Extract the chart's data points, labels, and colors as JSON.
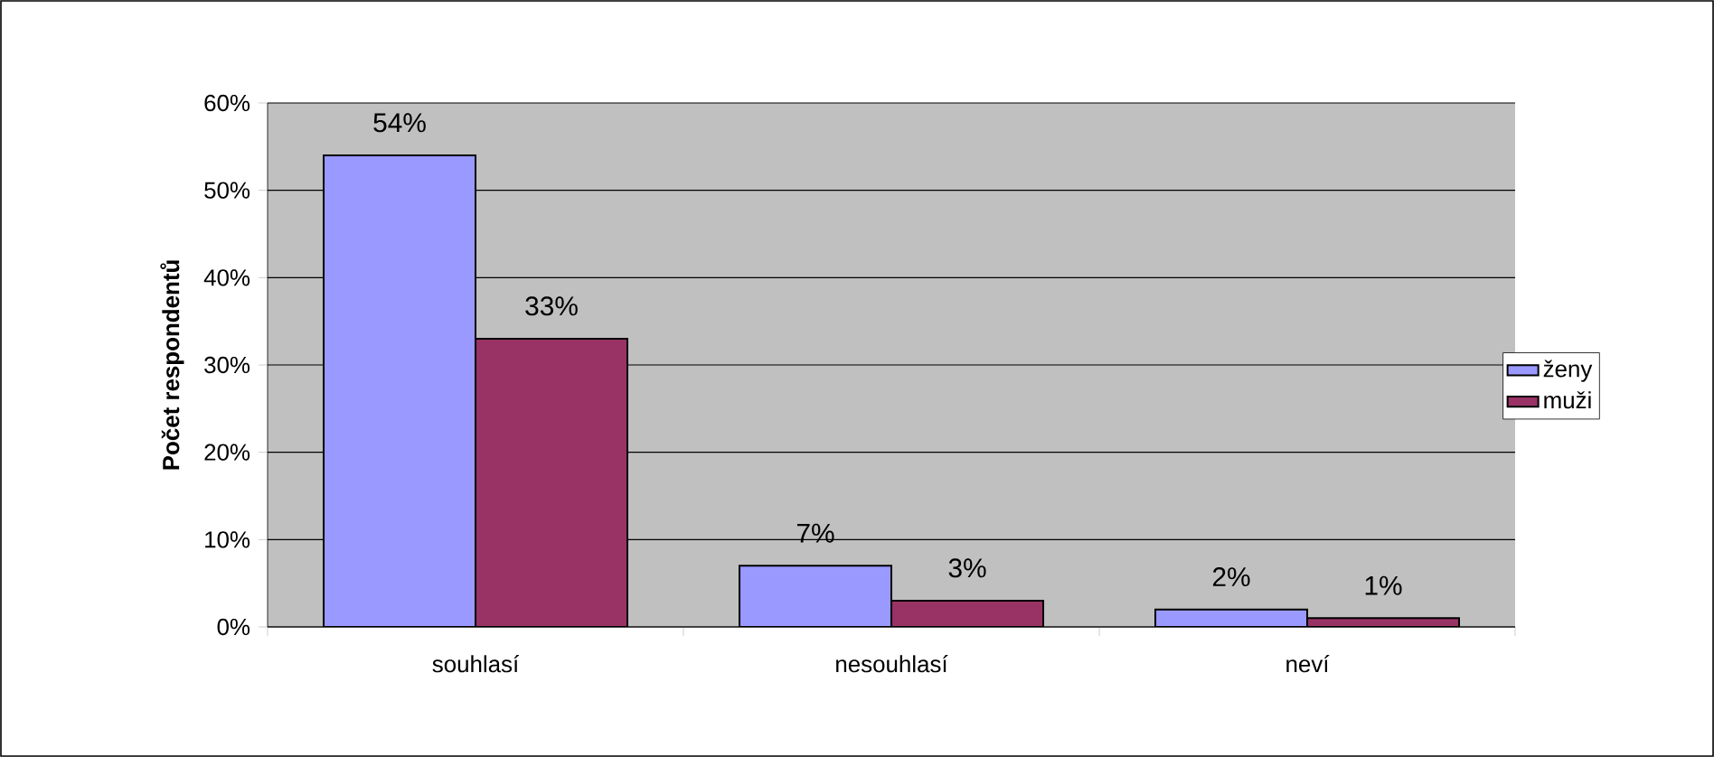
{
  "chart_data": {
    "type": "bar",
    "ylabel": "Počet respondentů",
    "categories": [
      "souhlasí",
      "nesouhlasí",
      "neví"
    ],
    "series": [
      {
        "name": "ženy",
        "color": "#9999ff",
        "values": [
          54,
          7,
          2
        ],
        "value_labels": [
          "54%",
          "7%",
          "2%"
        ]
      },
      {
        "name": "muži",
        "color": "#993366",
        "values": [
          33,
          3,
          1
        ],
        "value_labels": [
          "33%",
          "3%",
          "1%"
        ]
      }
    ],
    "ylim": [
      0,
      60
    ],
    "yticks": [
      {
        "value": 0,
        "label": "0%"
      },
      {
        "value": 10,
        "label": "10%"
      },
      {
        "value": 20,
        "label": "20%"
      },
      {
        "value": 30,
        "label": "30%"
      },
      {
        "value": 40,
        "label": "40%"
      },
      {
        "value": 50,
        "label": "50%"
      },
      {
        "value": 60,
        "label": "60%"
      }
    ],
    "grid": "y",
    "legend": "right"
  }
}
